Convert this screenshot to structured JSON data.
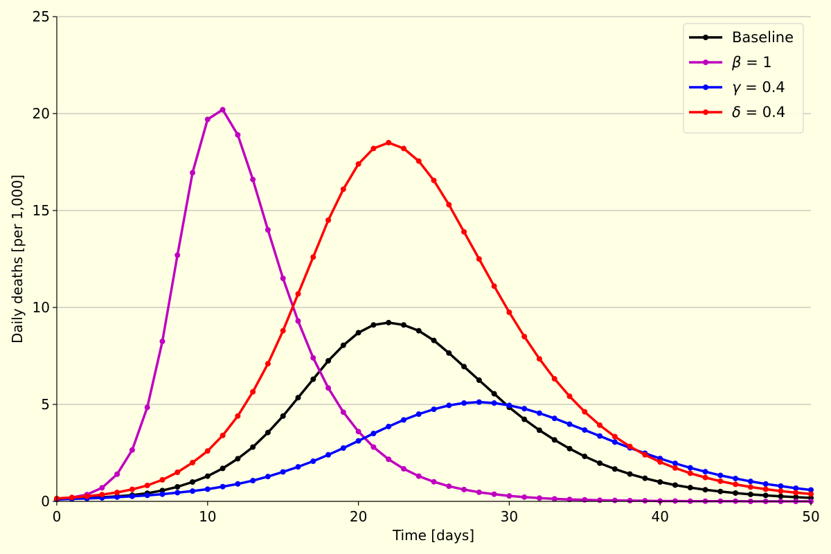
{
  "chart_data": {
    "type": "line",
    "xlabel": "Time [days]",
    "ylabel": "Daily deaths [per 1,000]",
    "xlim": [
      0,
      50
    ],
    "ylim": [
      0,
      25
    ],
    "xticks": [
      "0",
      "10",
      "20",
      "30",
      "40",
      "50"
    ],
    "yticks": [
      "0",
      "5",
      "10",
      "15",
      "20",
      "25"
    ],
    "grid": "horizontal",
    "legend_position": "top-right",
    "x": [
      0,
      1,
      2,
      3,
      4,
      5,
      6,
      7,
      8,
      9,
      10,
      11,
      12,
      13,
      14,
      15,
      16,
      17,
      18,
      19,
      20,
      21,
      22,
      23,
      24,
      25,
      26,
      27,
      28,
      29,
      30,
      31,
      32,
      33,
      34,
      35,
      36,
      37,
      38,
      39,
      40,
      41,
      42,
      43,
      44,
      45,
      46,
      47,
      48,
      49,
      50
    ],
    "series": [
      {
        "name": "Baseline",
        "symbol": "",
        "value_label": "",
        "color": "#000000",
        "values": [
          0.1,
          0.15,
          0.17,
          0.21,
          0.26,
          0.32,
          0.42,
          0.56,
          0.75,
          1.0,
          1.3,
          1.7,
          2.2,
          2.8,
          3.55,
          4.4,
          5.35,
          6.3,
          7.25,
          8.05,
          8.7,
          9.1,
          9.22,
          9.1,
          8.8,
          8.3,
          7.65,
          6.95,
          6.25,
          5.55,
          4.85,
          4.23,
          3.67,
          3.17,
          2.72,
          2.32,
          1.97,
          1.67,
          1.41,
          1.19,
          1.0,
          0.84,
          0.71,
          0.6,
          0.51,
          0.43,
          0.36,
          0.31,
          0.26,
          0.22,
          0.18
        ]
      },
      {
        "name": "",
        "symbol": "β",
        "value_label": " = 1",
        "color": "#bf00bf",
        "values": [
          0.1,
          0.2,
          0.35,
          0.7,
          1.4,
          2.65,
          4.85,
          8.25,
          12.7,
          16.95,
          19.7,
          20.2,
          18.9,
          16.6,
          14.0,
          11.5,
          9.3,
          7.4,
          5.85,
          4.6,
          3.6,
          2.8,
          2.17,
          1.68,
          1.3,
          1.01,
          0.78,
          0.61,
          0.47,
          0.37,
          0.28,
          0.22,
          0.17,
          0.13,
          0.1,
          0.08,
          0.06,
          0.05,
          0.04,
          0.03,
          0.02,
          0.02,
          0.01,
          0.01,
          0.01,
          0.01,
          0.0,
          0.0,
          0.0,
          0.0,
          0.0
        ]
      },
      {
        "name": "",
        "symbol": "γ",
        "value_label": " = 0.4",
        "color": "#0000ff",
        "values": [
          0.1,
          0.13,
          0.15,
          0.18,
          0.22,
          0.26,
          0.31,
          0.37,
          0.45,
          0.53,
          0.63,
          0.76,
          0.9,
          1.07,
          1.28,
          1.52,
          1.78,
          2.07,
          2.4,
          2.75,
          3.12,
          3.5,
          3.86,
          4.2,
          4.5,
          4.75,
          4.95,
          5.07,
          5.12,
          5.07,
          4.95,
          4.78,
          4.55,
          4.28,
          3.98,
          3.68,
          3.37,
          3.06,
          2.76,
          2.48,
          2.21,
          1.96,
          1.73,
          1.53,
          1.34,
          1.18,
          1.03,
          0.9,
          0.79,
          0.68,
          0.59
        ]
      },
      {
        "name": "",
        "symbol": "δ",
        "value_label": " = 0.4",
        "color": "#ff0000",
        "values": [
          0.15,
          0.2,
          0.26,
          0.35,
          0.46,
          0.62,
          0.82,
          1.11,
          1.5,
          2.0,
          2.6,
          3.4,
          4.4,
          5.65,
          7.1,
          8.8,
          10.7,
          12.6,
          14.5,
          16.1,
          17.4,
          18.2,
          18.5,
          18.2,
          17.55,
          16.55,
          15.3,
          13.9,
          12.5,
          11.1,
          9.75,
          8.5,
          7.35,
          6.32,
          5.42,
          4.62,
          3.93,
          3.34,
          2.83,
          2.4,
          2.03,
          1.72,
          1.45,
          1.23,
          1.04,
          0.88,
          0.74,
          0.63,
          0.53,
          0.45,
          0.38
        ]
      }
    ]
  }
}
